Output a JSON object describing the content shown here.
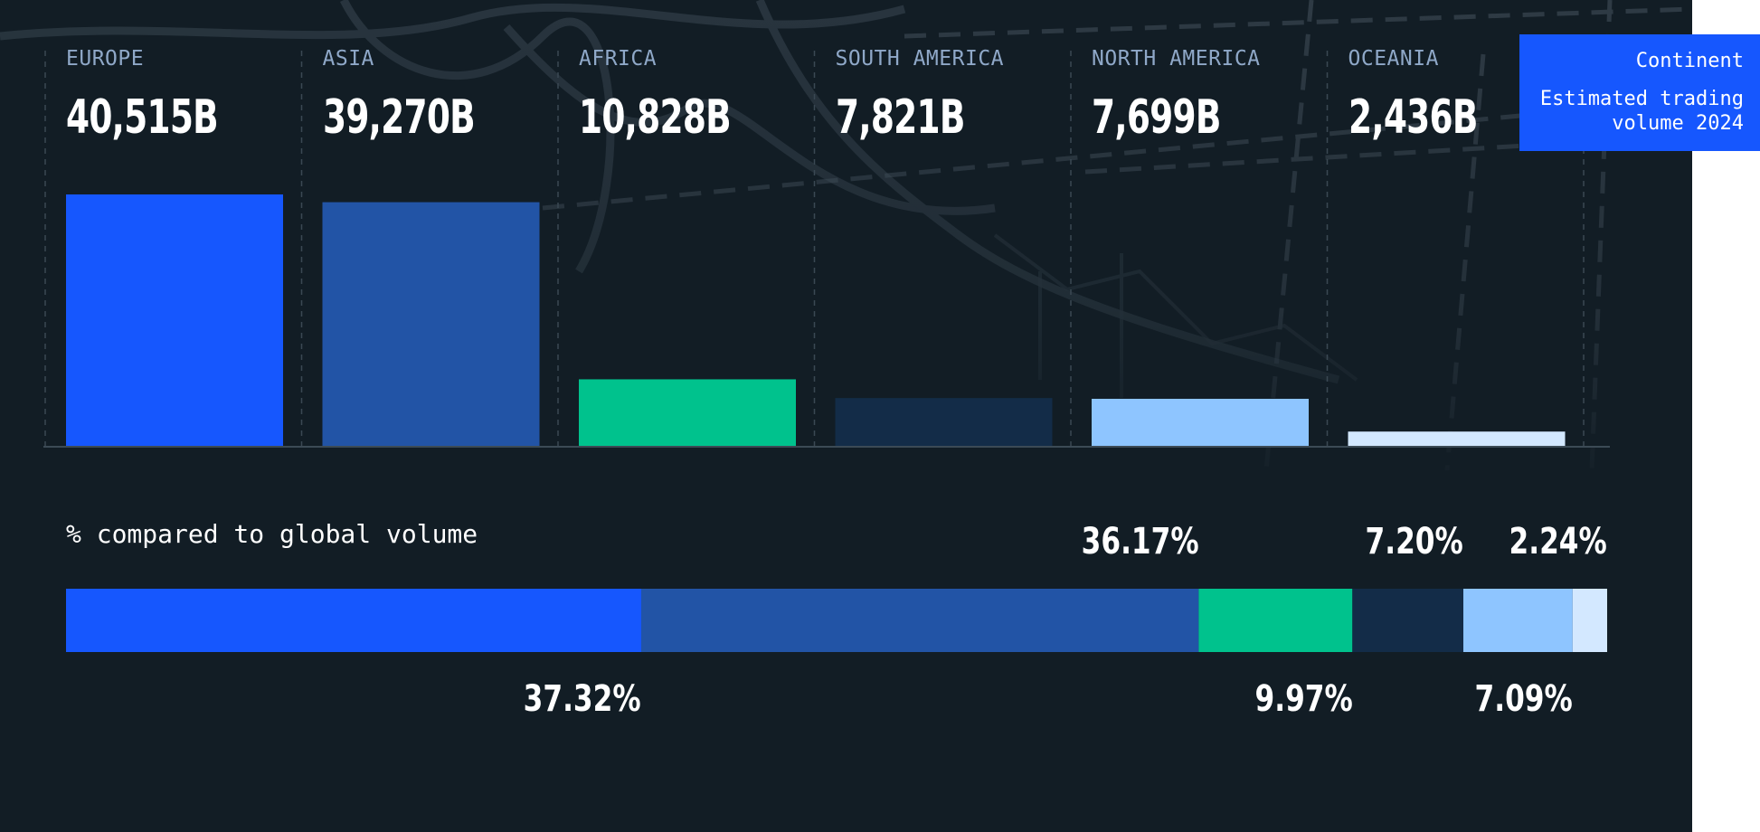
{
  "chart_data": [
    {
      "type": "bar",
      "categories": [
        "EUROPE",
        "ASIA",
        "AFRICA",
        "SOUTH AMERICA",
        "NORTH AMERICA",
        "OCEANIA"
      ],
      "value_labels": [
        "40,515B",
        "39,270B",
        "10,828B",
        "7,821B",
        "7,699B",
        "2,436B"
      ],
      "values": [
        40515,
        39270,
        10828,
        7821,
        7699,
        2436
      ],
      "colors": [
        "#1657fe",
        "#2254a6",
        "#00c28d",
        "#132c48",
        "#8ec5ff",
        "#d3e8ff"
      ],
      "legend_title": "Continent",
      "legend_subtitle": "Estimated trading volume 2024",
      "grid": false
    },
    {
      "type": "bar",
      "stacked": true,
      "orientation": "horizontal",
      "title": "% compared to global volume",
      "categories": [
        "EUROPE",
        "ASIA",
        "AFRICA",
        "SOUTH AMERICA",
        "NORTH AMERICA",
        "OCEANIA"
      ],
      "values": [
        37.32,
        36.17,
        9.97,
        7.2,
        7.09,
        2.24
      ],
      "labels": [
        "37.32%",
        "36.17%",
        "9.97%",
        "7.20%",
        "7.09%",
        "2.24%"
      ],
      "label_positions": [
        "below",
        "above",
        "below",
        "above",
        "below",
        "above"
      ],
      "colors": [
        "#1657fe",
        "#2254a6",
        "#00c28d",
        "#132c48",
        "#8ec5ff",
        "#d3e8ff"
      ]
    }
  ]
}
